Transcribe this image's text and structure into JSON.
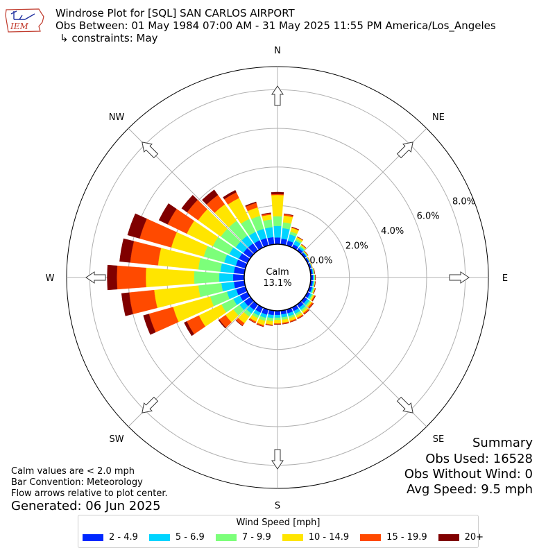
{
  "header": {
    "line1": "Windrose Plot for [SQL] SAN CARLOS AIRPORT",
    "line2": "Obs Between: 01 May 1984 07:00 AM - 31 May 2025 11:55 PM America/Los_Angeles",
    "line3": "↳ constraints: May",
    "logo_text": "IEM"
  },
  "notes": {
    "calm_def": "Calm values are < 2.0 mph",
    "convention": "Bar Convention: Meteorology",
    "arrows": "Flow arrows relative to plot center.",
    "generated": "Generated: 06 Jun 2025"
  },
  "summary": {
    "title": "Summary",
    "obs_used": "Obs Used: 16528",
    "obs_without_wind": "Obs Without Wind: 0",
    "avg_speed": "Avg Speed: 9.5 mph"
  },
  "legend": {
    "title": "Wind Speed [mph]",
    "items": [
      {
        "label": "2 - 4.9",
        "color": "#0028ff"
      },
      {
        "label": "5 - 6.9",
        "color": "#00d4ff"
      },
      {
        "label": "7 - 9.9",
        "color": "#7cff7a"
      },
      {
        "label": "10 - 14.9",
        "color": "#ffe500"
      },
      {
        "label": "15 - 19.9",
        "color": "#ff4a00"
      },
      {
        "label": "20+",
        "color": "#800000"
      }
    ]
  },
  "chart_data": {
    "type": "windrose",
    "calm_label": "Calm",
    "calm_value": "13.1%",
    "calm_percent": 13.1,
    "rlim": [
      0,
      9.2
    ],
    "radial_ticks": [
      0,
      2,
      4,
      6,
      8
    ],
    "radial_tick_labels": [
      "0.0%",
      "2.0%",
      "4.0%",
      "6.0%",
      "8.0%"
    ],
    "compass": [
      {
        "label": "N",
        "deg": 0
      },
      {
        "label": "NE",
        "deg": 45
      },
      {
        "label": "E",
        "deg": 90
      },
      {
        "label": "SE",
        "deg": 135
      },
      {
        "label": "S",
        "deg": 180
      },
      {
        "label": "SW",
        "deg": 225
      },
      {
        "label": "W",
        "deg": 270
      },
      {
        "label": "NW",
        "deg": 315
      }
    ],
    "bin_labels": [
      "2 - 4.9",
      "5 - 6.9",
      "7 - 9.9",
      "10 - 14.9",
      "15 - 19.9",
      "20+"
    ],
    "directions_deg": [
      0,
      10,
      20,
      30,
      40,
      50,
      60,
      70,
      80,
      90,
      100,
      110,
      120,
      130,
      140,
      150,
      160,
      170,
      180,
      190,
      200,
      210,
      220,
      230,
      240,
      250,
      260,
      270,
      280,
      290,
      300,
      310,
      320,
      330,
      340,
      350
    ],
    "cumulative_percent": [
      [
        0.35,
        0.95,
        1.45,
        2.55,
        2.6,
        2.7
      ],
      [
        0.3,
        0.85,
        1.15,
        1.5,
        1.58,
        1.6
      ],
      [
        0.26,
        0.6,
        0.75,
        0.95,
        0.98,
        1.0
      ],
      [
        0.18,
        0.4,
        0.5,
        0.6,
        0.62,
        0.63
      ],
      [
        0.15,
        0.25,
        0.32,
        0.38,
        0.4,
        0.41
      ],
      [
        0.12,
        0.16,
        0.19,
        0.22,
        0.23,
        0.24
      ],
      [
        0.1,
        0.12,
        0.14,
        0.16,
        0.17,
        0.17
      ],
      [
        0.1,
        0.12,
        0.14,
        0.15,
        0.16,
        0.16
      ],
      [
        0.11,
        0.15,
        0.18,
        0.2,
        0.21,
        0.22
      ],
      [
        0.12,
        0.18,
        0.21,
        0.23,
        0.24,
        0.25
      ],
      [
        0.12,
        0.18,
        0.22,
        0.24,
        0.25,
        0.26
      ],
      [
        0.14,
        0.21,
        0.26,
        0.3,
        0.32,
        0.33
      ],
      [
        0.16,
        0.26,
        0.33,
        0.4,
        0.45,
        0.47
      ],
      [
        0.18,
        0.32,
        0.4,
        0.48,
        0.56,
        0.58
      ],
      [
        0.2,
        0.35,
        0.45,
        0.55,
        0.62,
        0.64
      ],
      [
        0.21,
        0.37,
        0.48,
        0.6,
        0.66,
        0.67
      ],
      [
        0.21,
        0.37,
        0.48,
        0.62,
        0.68,
        0.69
      ],
      [
        0.2,
        0.36,
        0.48,
        0.64,
        0.7,
        0.71
      ],
      [
        0.22,
        0.36,
        0.48,
        0.66,
        0.7,
        0.71
      ],
      [
        0.24,
        0.4,
        0.55,
        0.74,
        0.78,
        0.79
      ],
      [
        0.28,
        0.46,
        0.62,
        0.85,
        0.92,
        0.93
      ],
      [
        0.3,
        0.48,
        0.62,
        0.82,
        0.9,
        0.91
      ],
      [
        0.35,
        0.58,
        0.78,
        1.2,
        1.36,
        1.38
      ],
      [
        0.4,
        0.7,
        1.1,
        1.6,
        2.0,
        2.05
      ],
      [
        0.44,
        0.82,
        1.5,
        2.8,
        3.5,
        3.65
      ],
      [
        0.5,
        1.0,
        1.9,
        3.9,
        5.2,
        5.5
      ],
      [
        0.55,
        1.2,
        2.4,
        4.7,
        6.0,
        6.4
      ],
      [
        0.58,
        1.3,
        2.6,
        5.1,
        6.6,
        7.1
      ],
      [
        0.55,
        1.25,
        2.4,
        4.5,
        5.95,
        6.5
      ],
      [
        0.52,
        1.15,
        2.25,
        4.0,
        5.7,
        6.35
      ],
      [
        0.5,
        1.05,
        2.0,
        3.5,
        4.6,
        5.1
      ],
      [
        0.46,
        0.95,
        1.9,
        3.35,
        4.05,
        4.4
      ],
      [
        0.45,
        0.95,
        1.9,
        2.95,
        3.55,
        3.88
      ],
      [
        0.42,
        0.9,
        1.65,
        2.85,
        3.18,
        3.3
      ],
      [
        0.4,
        0.9,
        1.6,
        2.05,
        2.3,
        2.35
      ],
      [
        0.38,
        0.9,
        1.3,
        1.55,
        1.62,
        1.65
      ]
    ]
  }
}
